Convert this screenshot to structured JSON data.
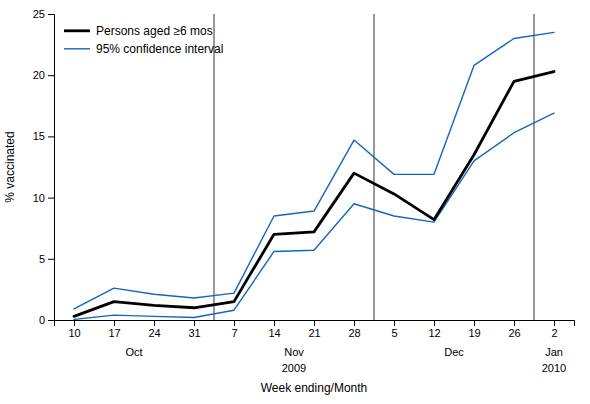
{
  "chart_data": {
    "type": "line",
    "categories": [
      "10",
      "17",
      "24",
      "31",
      "7",
      "14",
      "21",
      "28",
      "5",
      "12",
      "19",
      "26",
      "2"
    ],
    "month_labels": [
      {
        "label": "Oct",
        "x": 1.5
      },
      {
        "label": "Nov",
        "x": 5.5
      },
      {
        "label": "Dec",
        "x": 9.5
      },
      {
        "label": "Jan",
        "x": 12.0
      }
    ],
    "year_labels": [
      {
        "label": "2009",
        "x": 5.5
      },
      {
        "label": "2010",
        "x": 12.0
      }
    ],
    "vlines": [
      3.5,
      7.5,
      11.5
    ],
    "series": [
      {
        "name": "Persons aged ≥6 mos",
        "color": "#000000",
        "values": [
          0.3,
          1.5,
          1.2,
          1.0,
          1.5,
          7.0,
          7.2,
          12.0,
          10.3,
          8.2,
          13.5,
          19.5,
          20.3
        ]
      },
      {
        "name": "95% confidence interval",
        "color": "#1565c0",
        "values": [
          0.9,
          2.6,
          2.1,
          1.8,
          2.2,
          8.5,
          8.9,
          14.7,
          11.9,
          11.9,
          20.8,
          23.0,
          23.5
        ]
      },
      {
        "name": "95% confidence interval",
        "color": "#1565c0",
        "values": [
          0.05,
          0.4,
          0.3,
          0.2,
          0.8,
          5.6,
          5.7,
          9.5,
          8.5,
          8.0,
          13.0,
          15.3,
          16.9
        ]
      }
    ],
    "y_label": "% vaccinated",
    "x_label": "Week ending/Month",
    "ylim": [
      0,
      25
    ],
    "yticks": [
      0,
      5,
      10,
      15,
      20,
      25
    ],
    "grid": false,
    "legend": "upper left"
  }
}
